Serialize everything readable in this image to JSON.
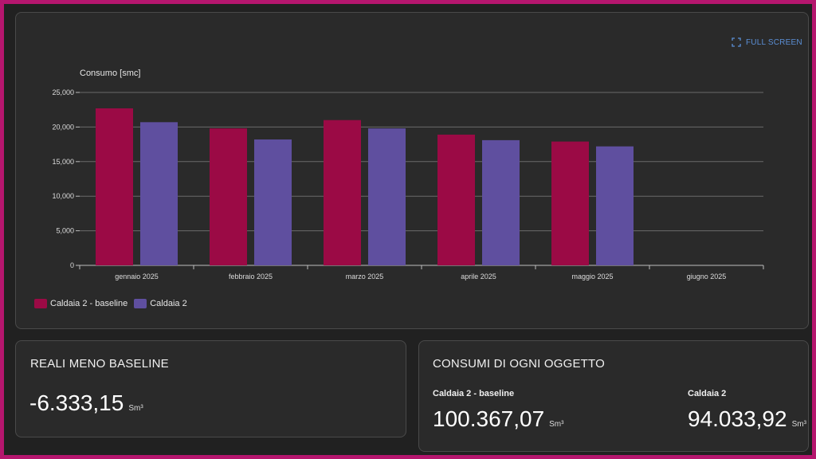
{
  "colors": {
    "baseline": "#9b0a45",
    "caldaia": "#5f4f9f",
    "frame": "#b5166e",
    "accent": "#5b8fd6"
  },
  "fullscreen": {
    "label": "FULL SCREEN",
    "icon": "expand-icon"
  },
  "chart_data": {
    "type": "bar",
    "ylabel": "Consumo [smc]",
    "categories": [
      "gennaio 2025",
      "febbraio 2025",
      "marzo 2025",
      "aprile 2025",
      "maggio 2025",
      "giugno 2025"
    ],
    "series": [
      {
        "name": "Caldaia 2 - baseline",
        "values": [
          22700,
          19800,
          21000,
          18900,
          17900,
          null
        ]
      },
      {
        "name": "Caldaia 2",
        "values": [
          20700,
          18200,
          19800,
          18100,
          17200,
          null
        ]
      }
    ],
    "ylim": [
      0,
      25000
    ],
    "yticks": [
      "0",
      "5,000",
      "10,000",
      "15,000",
      "20,000",
      "25,000"
    ],
    "grid": true,
    "legend_position": "bottom-left"
  },
  "reali": {
    "title": "REALI MENO BASELINE",
    "value": "-6.333,15",
    "unit": "Sm³"
  },
  "consumi": {
    "title": "CONSUMI DI OGNI OGGETTO",
    "items": [
      {
        "label": "Caldaia 2 - baseline",
        "value": "100.367,07",
        "unit": "Sm³"
      },
      {
        "label": "Caldaia 2",
        "value": "94.033,92",
        "unit": "Sm³"
      }
    ]
  }
}
